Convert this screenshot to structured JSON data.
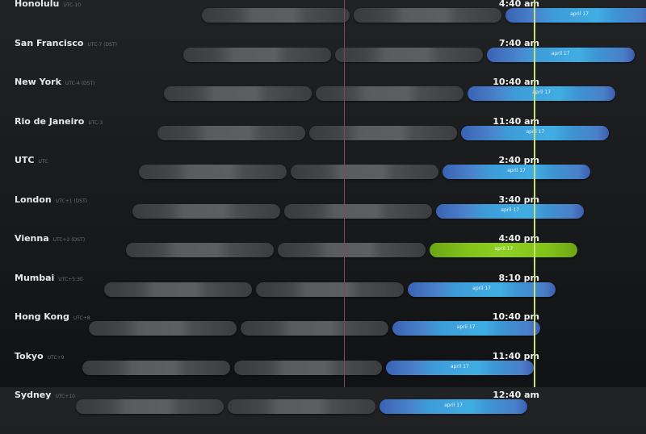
{
  "date_label": "april 17",
  "colors": {
    "current_day": "#40aee3",
    "highlight": "#8fd022",
    "past_day": "#5a5b5d",
    "now_line": "#c8e07a",
    "midnight_line": "#7a4a66"
  },
  "cities": [
    {
      "name": "Honolulu",
      "utc": "UTC-10",
      "offset_hours": -10,
      "time": "4:40 am",
      "highlight": false
    },
    {
      "name": "San Francisco",
      "utc": "UTC-7 (DST)",
      "offset_hours": -7,
      "time": "7:40 am",
      "highlight": false
    },
    {
      "name": "New York",
      "utc": "UTC-4 (DST)",
      "offset_hours": -4,
      "time": "10:40 am",
      "highlight": false
    },
    {
      "name": "Rio de Janeiro",
      "utc": "UTC-3",
      "offset_hours": -3,
      "time": "11:40 am",
      "highlight": false
    },
    {
      "name": "UTC",
      "utc": "UTC",
      "offset_hours": 0,
      "time": "2:40 pm",
      "highlight": false
    },
    {
      "name": "London",
      "utc": "UTC+1 (DST)",
      "offset_hours": 1,
      "time": "3:40 pm",
      "highlight": false
    },
    {
      "name": "Vienna",
      "utc": "UTC+2 (DST)",
      "offset_hours": 2,
      "time": "4:40 pm",
      "highlight": true
    },
    {
      "name": "Mumbai",
      "utc": "UTC+5:30",
      "offset_hours": 5.5,
      "time": "8:10 pm",
      "highlight": false
    },
    {
      "name": "Hong Kong",
      "utc": "UTC+8",
      "offset_hours": 8,
      "time": "10:40 pm",
      "highlight": false
    },
    {
      "name": "Tokyo",
      "utc": "UTC+9",
      "offset_hours": 9,
      "time": "11:40 pm",
      "highlight": false
    },
    {
      "name": "Sydney",
      "utc": "UTC+10",
      "offset_hours": 10,
      "time": "12:40 am",
      "highlight": false
    }
  ]
}
